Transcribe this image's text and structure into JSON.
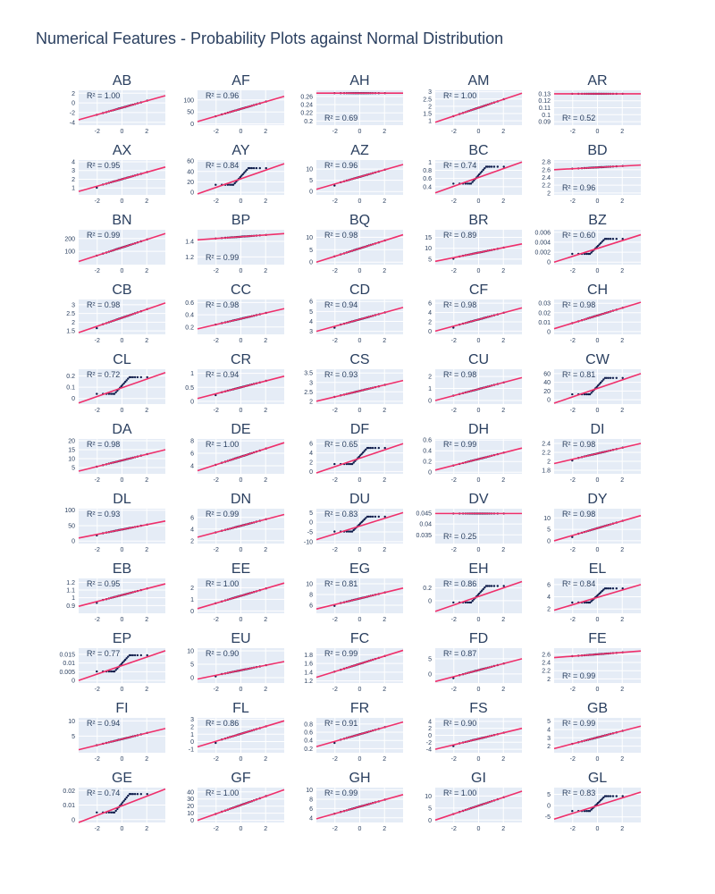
{
  "title": "Numerical Features - Probability Plots against Normal Distribution",
  "colors": {
    "background": "#ffffff",
    "plot_bg": "#e5ecf6",
    "grid": "#ffffff",
    "points": "#0d1b4a",
    "fit_line": "#ef2f6b",
    "text": "#2a3f5f"
  },
  "chart_data": [
    {
      "type": "scatter",
      "title": "AB",
      "r2": "R² = 1.00",
      "xticks": [
        -2,
        0,
        2
      ],
      "yticks": [
        -4,
        -2,
        0,
        2
      ],
      "ylim": [
        -4.6,
        2.6
      ],
      "shape": "linear",
      "y0": -3.5,
      "y1": 1.5,
      "xlabel": "",
      "ylabel": ""
    },
    {
      "type": "scatter",
      "title": "AF",
      "r2": "R² = 0.96",
      "xticks": [
        -2,
        0,
        2
      ],
      "yticks": [
        0,
        50,
        100
      ],
      "ylim": [
        -5,
        140
      ],
      "shape": "linear",
      "y0": 10,
      "y1": 115
    },
    {
      "type": "scatter",
      "title": "AH",
      "r2": "R² = 0.69",
      "xticks": [
        -2,
        0,
        2
      ],
      "yticks": [
        0.2,
        0.22,
        0.24,
        0.26
      ],
      "ylim": [
        0.19,
        0.275
      ],
      "shape": "flat",
      "y0": 0.268,
      "y1": 0.268
    },
    {
      "type": "scatter",
      "title": "AM",
      "r2": "R² = 1.00",
      "xticks": [
        -2,
        0,
        2
      ],
      "yticks": [
        1,
        1.5,
        2,
        2.5,
        3
      ],
      "ylim": [
        0.7,
        3.1
      ],
      "shape": "linear",
      "y0": 0.9,
      "y1": 2.9
    },
    {
      "type": "scatter",
      "title": "AR",
      "r2": "R² = 0.52",
      "xticks": [
        -2,
        0,
        2
      ],
      "yticks": [
        0.09,
        0.1,
        0.11,
        0.12,
        0.13
      ],
      "ylim": [
        0.085,
        0.135
      ],
      "shape": "flat",
      "y0": 0.13,
      "y1": 0.13
    },
    {
      "type": "scatter",
      "title": "AX",
      "r2": "R² = 0.95",
      "xticks": [
        -2,
        0,
        2
      ],
      "yticks": [
        1,
        2,
        3,
        4
      ],
      "ylim": [
        0.2,
        4.2
      ],
      "shape": "floor",
      "y0": 0.6,
      "y1": 3.4
    },
    {
      "type": "scatter",
      "title": "AY",
      "r2": "R² = 0.84",
      "xticks": [
        -2,
        0,
        2
      ],
      "yticks": [
        0,
        20,
        40,
        60
      ],
      "ylim": [
        -5,
        62
      ],
      "shape": "steps",
      "y0": -3,
      "y1": 55
    },
    {
      "type": "scatter",
      "title": "AZ",
      "r2": "R² = 0.96",
      "xticks": [
        -2,
        0,
        2
      ],
      "yticks": [
        0,
        5,
        10
      ],
      "ylim": [
        -1.5,
        14
      ],
      "shape": "floor",
      "y0": 1,
      "y1": 12
    },
    {
      "type": "scatter",
      "title": "BC",
      "r2": "R² = 0.74",
      "xticks": [
        -2,
        0,
        2
      ],
      "yticks": [
        0.4,
        0.6,
        0.8,
        1
      ],
      "ylim": [
        0.2,
        1.05
      ],
      "shape": "steps",
      "y0": 0.25,
      "y1": 1.0
    },
    {
      "type": "scatter",
      "title": "BD",
      "r2": "R² = 0.96",
      "xticks": [
        -2,
        0,
        2
      ],
      "yticks": [
        2,
        2.2,
        2.4,
        2.6,
        2.8
      ],
      "ylim": [
        1.95,
        2.85
      ],
      "shape": "flat",
      "y0": 2.6,
      "y1": 2.72
    },
    {
      "type": "scatter",
      "title": "BN",
      "r2": "R² = 0.99",
      "xticks": [
        -2,
        0,
        2
      ],
      "yticks": [
        100,
        200
      ],
      "ylim": [
        -5,
        270
      ],
      "shape": "linear",
      "y0": 20,
      "y1": 240
    },
    {
      "type": "scatter",
      "title": "BP",
      "r2": "R² = 0.99",
      "xticks": [
        -2,
        0,
        2
      ],
      "yticks": [
        1.2,
        1.4
      ],
      "ylim": [
        1.1,
        1.55
      ],
      "shape": "flat",
      "y0": 1.42,
      "y1": 1.5
    },
    {
      "type": "scatter",
      "title": "BQ",
      "r2": "R² = 0.98",
      "xticks": [
        -2,
        0,
        2
      ],
      "yticks": [
        0,
        5,
        10
      ],
      "ylim": [
        -1,
        13
      ],
      "shape": "linear",
      "y0": 0,
      "y1": 11
    },
    {
      "type": "scatter",
      "title": "BR",
      "r2": "R² = 0.89",
      "xticks": [
        -2,
        0,
        2
      ],
      "yticks": [
        5,
        10,
        15
      ],
      "ylim": [
        2.5,
        18.5
      ],
      "shape": "floor",
      "y0": 4,
      "y1": 12
    },
    {
      "type": "scatter",
      "title": "BZ",
      "r2": "R² = 0.60",
      "xticks": [
        -2,
        0,
        2
      ],
      "yticks": [
        0,
        0.002,
        0.004,
        0.006
      ],
      "ylim": [
        -0.0005,
        0.0065
      ],
      "shape": "steps",
      "y0": 0,
      "y1": 0.0055
    },
    {
      "type": "scatter",
      "title": "CB",
      "r2": "R² = 0.98",
      "xticks": [
        -2,
        0,
        2
      ],
      "yticks": [
        1.5,
        2,
        2.5,
        3
      ],
      "ylim": [
        1.3,
        3.3
      ],
      "shape": "floor",
      "y0": 1.4,
      "y1": 3.1
    },
    {
      "type": "scatter",
      "title": "CC",
      "r2": "R² = 0.98",
      "xticks": [
        -2,
        0,
        2
      ],
      "yticks": [
        0.2,
        0.4,
        0.6
      ],
      "ylim": [
        0.08,
        0.65
      ],
      "shape": "linear",
      "y0": 0.17,
      "y1": 0.5
    },
    {
      "type": "scatter",
      "title": "CD",
      "r2": "R² = 0.94",
      "xticks": [
        -2,
        0,
        2
      ],
      "yticks": [
        3,
        4,
        5,
        6
      ],
      "ylim": [
        2.7,
        6.2
      ],
      "shape": "floor",
      "y0": 3.0,
      "y1": 5.4
    },
    {
      "type": "scatter",
      "title": "CF",
      "r2": "R² = 0.98",
      "xticks": [
        -2,
        0,
        2
      ],
      "yticks": [
        0,
        2,
        4,
        6
      ],
      "ylim": [
        -0.7,
        6.8
      ],
      "shape": "floor",
      "y0": 0,
      "y1": 5
    },
    {
      "type": "scatter",
      "title": "CH",
      "r2": "R² = 0.98",
      "xticks": [
        -2,
        0,
        2
      ],
      "yticks": [
        0,
        0.01,
        0.02,
        0.03
      ],
      "ylim": [
        -0.003,
        0.034
      ],
      "shape": "linear",
      "y0": 0.003,
      "y1": 0.031
    },
    {
      "type": "scatter",
      "title": "CL",
      "r2": "R² = 0.72",
      "xticks": [
        -2,
        0,
        2
      ],
      "yticks": [
        0,
        0.1,
        0.2
      ],
      "ylim": [
        -0.05,
        0.26
      ],
      "shape": "steps",
      "y0": -0.04,
      "y1": 0.23
    },
    {
      "type": "scatter",
      "title": "CR",
      "r2": "R² = 0.94",
      "xticks": [
        -2,
        0,
        2
      ],
      "yticks": [
        0,
        0.5,
        1
      ],
      "ylim": [
        -0.1,
        1.15
      ],
      "shape": "floor",
      "y0": 0.1,
      "y1": 0.9
    },
    {
      "type": "scatter",
      "title": "CS",
      "r2": "R² = 0.93",
      "xticks": [
        -2,
        0,
        2
      ],
      "yticks": [
        2,
        2.5,
        3,
        3.5
      ],
      "ylim": [
        1.85,
        3.7
      ],
      "shape": "linear",
      "y0": 2.0,
      "y1": 3.1
    },
    {
      "type": "scatter",
      "title": "CU",
      "r2": "R² = 0.98",
      "xticks": [
        -2,
        0,
        2
      ],
      "yticks": [
        0,
        1,
        2
      ],
      "ylim": [
        -0.3,
        2.6
      ],
      "shape": "linear",
      "y0": 0,
      "y1": 1.9
    },
    {
      "type": "scatter",
      "title": "CW",
      "r2": "R² = 0.81",
      "xticks": [
        -2,
        0,
        2
      ],
      "yticks": [
        0,
        20,
        40,
        60
      ],
      "ylim": [
        -10,
        70
      ],
      "shape": "steps",
      "y0": -8,
      "y1": 60
    },
    {
      "type": "scatter",
      "title": "DA",
      "r2": "R² = 0.98",
      "xticks": [
        -2,
        0,
        2
      ],
      "yticks": [
        5,
        10,
        15,
        20
      ],
      "ylim": [
        1.5,
        21
      ],
      "shape": "linear",
      "y0": 3,
      "y1": 15
    },
    {
      "type": "scatter",
      "title": "DE",
      "r2": "R² = 1.00",
      "xticks": [
        -2,
        0,
        2
      ],
      "yticks": [
        4,
        6,
        8
      ],
      "ylim": [
        2.7,
        8.3
      ],
      "shape": "linear",
      "y0": 3.2,
      "y1": 7.7
    },
    {
      "type": "scatter",
      "title": "DF",
      "r2": "R² = 0.65",
      "xticks": [
        -2,
        0,
        2
      ],
      "yticks": [
        0,
        2,
        4,
        6
      ],
      "ylim": [
        -0.5,
        7
      ],
      "shape": "steps",
      "y0": -0.3,
      "y1": 6
    },
    {
      "type": "scatter",
      "title": "DH",
      "r2": "R² = 0.99",
      "xticks": [
        -2,
        0,
        2
      ],
      "yticks": [
        0,
        0.2,
        0.4,
        0.6
      ],
      "ylim": [
        -0.03,
        0.62
      ],
      "shape": "linear",
      "y0": 0.04,
      "y1": 0.45
    },
    {
      "type": "scatter",
      "title": "DI",
      "r2": "R² = 0.98",
      "xticks": [
        -2,
        0,
        2
      ],
      "yticks": [
        1.8,
        2,
        2.2,
        2.4
      ],
      "ylim": [
        1.72,
        2.5
      ],
      "shape": "floor",
      "y0": 1.95,
      "y1": 2.4
    },
    {
      "type": "scatter",
      "title": "DL",
      "r2": "R² = 0.93",
      "xticks": [
        -2,
        0,
        2
      ],
      "yticks": [
        0,
        50,
        100
      ],
      "ylim": [
        -8,
        105
      ],
      "shape": "floor",
      "y0": 10,
      "y1": 65
    },
    {
      "type": "scatter",
      "title": "DN",
      "r2": "R² = 0.99",
      "xticks": [
        -2,
        0,
        2
      ],
      "yticks": [
        2,
        4,
        6
      ],
      "ylim": [
        1.5,
        7.5
      ],
      "shape": "linear",
      "y0": 2.6,
      "y1": 6.5
    },
    {
      "type": "scatter",
      "title": "DU",
      "r2": "R² = 0.83",
      "xticks": [
        -2,
        0,
        2
      ],
      "yticks": [
        -10,
        -5,
        0,
        5
      ],
      "ylim": [
        -11,
        7
      ],
      "shape": "steps",
      "y0": -9,
      "y1": 5
    },
    {
      "type": "scatter",
      "title": "DV",
      "r2": "R² = 0.25",
      "xticks": [
        -2,
        0,
        2
      ],
      "yticks": [
        0.035,
        0.04,
        0.045
      ],
      "ylim": [
        0.031,
        0.047
      ],
      "shape": "flat",
      "y0": 0.0448,
      "y1": 0.0448
    },
    {
      "type": "scatter",
      "title": "DY",
      "r2": "R² = 0.98",
      "xticks": [
        -2,
        0,
        2
      ],
      "yticks": [
        0,
        5,
        10
      ],
      "ylim": [
        -1.2,
        14
      ],
      "shape": "floor",
      "y0": 0,
      "y1": 11
    },
    {
      "type": "scatter",
      "title": "EB",
      "r2": "R² = 0.95",
      "xticks": [
        -2,
        0,
        2
      ],
      "yticks": [
        0.9,
        1,
        1.1,
        1.2
      ],
      "ylim": [
        0.8,
        1.25
      ],
      "shape": "floor",
      "y0": 0.89,
      "y1": 1.18
    },
    {
      "type": "scatter",
      "title": "EE",
      "r2": "R² = 1.00",
      "xticks": [
        -2,
        0,
        2
      ],
      "yticks": [
        0,
        1,
        2
      ],
      "ylim": [
        -0.2,
        2.8
      ],
      "shape": "linear",
      "y0": 0.2,
      "y1": 2.4
    },
    {
      "type": "scatter",
      "title": "EG",
      "r2": "R² = 0.81",
      "xticks": [
        -2,
        0,
        2
      ],
      "yticks": [
        6,
        8,
        10
      ],
      "ylim": [
        4.5,
        11
      ],
      "shape": "floor",
      "y0": 5.3,
      "y1": 9.2
    },
    {
      "type": "scatter",
      "title": "EH",
      "r2": "R² = 0.86",
      "xticks": [
        -2,
        0,
        2
      ],
      "yticks": [
        0,
        0.2
      ],
      "ylim": [
        -0.2,
        0.35
      ],
      "shape": "steps",
      "y0": -0.17,
      "y1": 0.3
    },
    {
      "type": "scatter",
      "title": "EL",
      "r2": "R² = 0.84",
      "xticks": [
        -2,
        0,
        2
      ],
      "yticks": [
        2,
        4,
        6
      ],
      "ylim": [
        1.3,
        7
      ],
      "shape": "steps",
      "y0": 1.8,
      "y1": 6
    },
    {
      "type": "scatter",
      "title": "EP",
      "r2": "R² = 0.77",
      "xticks": [
        -2,
        0,
        2
      ],
      "yticks": [
        0,
        0.005,
        0.01,
        0.015
      ],
      "ylim": [
        -0.0015,
        0.0185
      ],
      "shape": "steps",
      "y0": 0,
      "y1": 0.017
    },
    {
      "type": "scatter",
      "title": "EU",
      "r2": "R² = 0.90",
      "xticks": [
        -2,
        0,
        2
      ],
      "yticks": [
        0,
        5,
        10
      ],
      "ylim": [
        -2,
        11
      ],
      "shape": "floor",
      "y0": -0.5,
      "y1": 6
    },
    {
      "type": "scatter",
      "title": "FC",
      "r2": "R² = 0.99",
      "xticks": [
        -2,
        0,
        2
      ],
      "yticks": [
        1.2,
        1.4,
        1.6,
        1.8
      ],
      "ylim": [
        1.15,
        1.95
      ],
      "shape": "linear",
      "y0": 1.28,
      "y1": 1.9
    },
    {
      "type": "scatter",
      "title": "FD",
      "r2": "R² = 0.87",
      "xticks": [
        -2,
        0,
        2
      ],
      "yticks": [
        0,
        5
      ],
      "ylim": [
        -3,
        8.5
      ],
      "shape": "floor",
      "y0": -2.5,
      "y1": 5
    },
    {
      "type": "scatter",
      "title": "FE",
      "r2": "R² = 0.99",
      "xticks": [
        -2,
        0,
        2
      ],
      "yticks": [
        2,
        2.2,
        2.4,
        2.6
      ],
      "ylim": [
        1.9,
        2.75
      ],
      "shape": "flat",
      "y0": 2.52,
      "y1": 2.68
    },
    {
      "type": "scatter",
      "title": "FI",
      "r2": "R² = 0.94",
      "xticks": [
        -2,
        0,
        2
      ],
      "yticks": [
        5,
        10
      ],
      "ylim": [
        -0.5,
        11
      ],
      "shape": "linear",
      "y0": 0.5,
      "y1": 7.5
    },
    {
      "type": "scatter",
      "title": "FL",
      "r2": "R² = 0.86",
      "xticks": [
        -2,
        0,
        2
      ],
      "yticks": [
        -1,
        0,
        1,
        2,
        3
      ],
      "ylim": [
        -1.5,
        3.2
      ],
      "shape": "floor",
      "y0": -0.7,
      "y1": 2.8
    },
    {
      "type": "scatter",
      "title": "FR",
      "r2": "R² = 0.91",
      "xticks": [
        -2,
        0,
        2
      ],
      "yticks": [
        0.2,
        0.4,
        0.6,
        0.8
      ],
      "ylim": [
        0.1,
        0.95
      ],
      "shape": "floor",
      "y0": 0.25,
      "y1": 0.85
    },
    {
      "type": "scatter",
      "title": "FS",
      "r2": "R² = 0.90",
      "xticks": [
        -2,
        0,
        2
      ],
      "yticks": [
        -4,
        -2,
        0,
        2,
        4
      ],
      "ylim": [
        -5,
        5
      ],
      "shape": "floor",
      "y0": -4,
      "y1": 2
    },
    {
      "type": "scatter",
      "title": "GB",
      "r2": "R² = 0.99",
      "xticks": [
        -2,
        0,
        2
      ],
      "yticks": [
        2,
        3,
        4,
        5
      ],
      "ylim": [
        1.2,
        5.4
      ],
      "shape": "linear",
      "y0": 1.7,
      "y1": 4.4
    },
    {
      "type": "scatter",
      "title": "GE",
      "r2": "R² = 0.74",
      "xticks": [
        -2,
        0,
        2
      ],
      "yticks": [
        0,
        0.01,
        0.02
      ],
      "ylim": [
        -0.002,
        0.022
      ],
      "shape": "steps",
      "y0": -0.002,
      "y1": 0.021
    },
    {
      "type": "scatter",
      "title": "GF",
      "r2": "R² = 1.00",
      "xticks": [
        -2,
        0,
        2
      ],
      "yticks": [
        0,
        10,
        20,
        30,
        40
      ],
      "ylim": [
        -3,
        46
      ],
      "shape": "linear",
      "y0": 0,
      "y1": 43
    },
    {
      "type": "scatter",
      "title": "GH",
      "r2": "R² = 0.99",
      "xticks": [
        -2,
        0,
        2
      ],
      "yticks": [
        4,
        6,
        8,
        10
      ],
      "ylim": [
        3,
        10.5
      ],
      "shape": "linear",
      "y0": 3.8,
      "y1": 9
    },
    {
      "type": "scatter",
      "title": "GI",
      "r2": "R² = 1.00",
      "xticks": [
        -2,
        0,
        2
      ],
      "yticks": [
        0,
        5,
        10
      ],
      "ylim": [
        -1,
        13.5
      ],
      "shape": "linear",
      "y0": 0,
      "y1": 12
    },
    {
      "type": "scatter",
      "title": "GL",
      "r2": "R² = 0.83",
      "xticks": [
        -2,
        0,
        2
      ],
      "yticks": [
        -5,
        0,
        5
      ],
      "ylim": [
        -7.5,
        8
      ],
      "shape": "steps",
      "y0": -6,
      "y1": 6
    }
  ]
}
